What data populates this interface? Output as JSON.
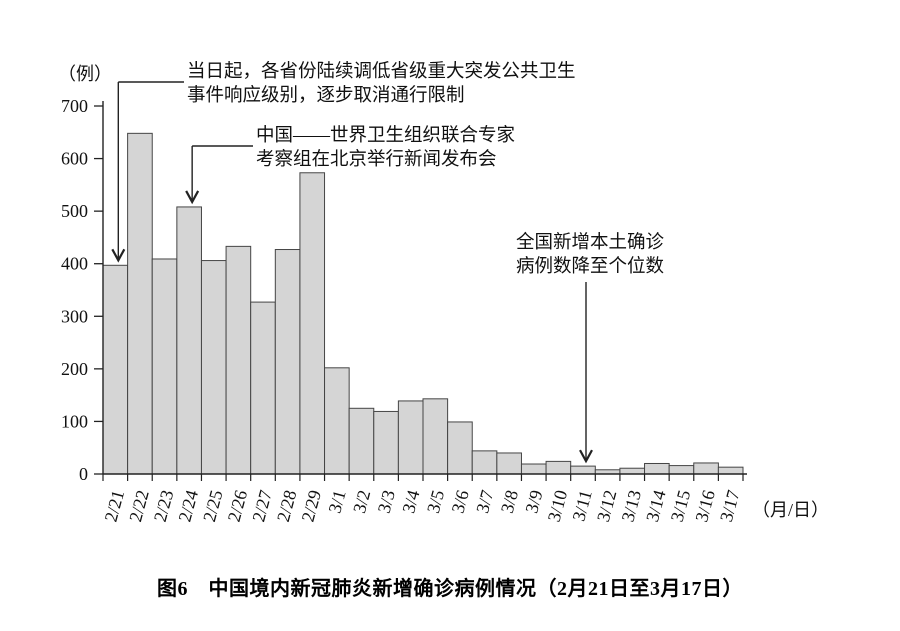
{
  "figure": {
    "caption": "图6　中国境内新冠肺炎新增确诊病例情况（2月21日至3月17日）"
  },
  "chart_data": {
    "type": "bar",
    "title": "图6　中国境内新冠肺炎新增确诊病例情况（2月21日至3月17日）",
    "y_unit_label": "（例）",
    "x_unit_label": "（月/日）",
    "xlabel": "",
    "ylabel": "例",
    "categories": [
      "2/21",
      "2/22",
      "2/23",
      "2/24",
      "2/25",
      "2/26",
      "2/27",
      "2/28",
      "2/29",
      "3/1",
      "3/2",
      "3/3",
      "3/4",
      "3/5",
      "3/6",
      "3/7",
      "3/8",
      "3/9",
      "3/10",
      "3/11",
      "3/12",
      "3/13",
      "3/14",
      "3/15",
      "3/16",
      "3/17"
    ],
    "values": [
      397,
      648,
      409,
      508,
      406,
      433,
      327,
      427,
      573,
      202,
      125,
      119,
      139,
      143,
      99,
      44,
      40,
      19,
      24,
      15,
      8,
      11,
      20,
      16,
      21,
      13
    ],
    "ylim": [
      0,
      700
    ],
    "yticks": [
      0,
      100,
      200,
      300,
      400,
      500,
      600,
      700
    ],
    "grid": false,
    "legend": "none",
    "bar_fill": "#d5d5d5",
    "bar_stroke": "#454545",
    "axis_color": "#222222",
    "annotations": [
      {
        "lines": [
          "当日起，各省份陆续调低省级重大突发公共卫生",
          "事件响应级别，逐步取消通行限制"
        ],
        "target_category": "2/21"
      },
      {
        "lines": [
          "中国——世界卫生组织联合专家",
          "考察组在北京举行新闻发布会"
        ],
        "target_category": "2/24"
      },
      {
        "lines": [
          "全国新增本土确诊",
          "病例数降至个位数"
        ],
        "target_category": "3/11"
      }
    ]
  }
}
